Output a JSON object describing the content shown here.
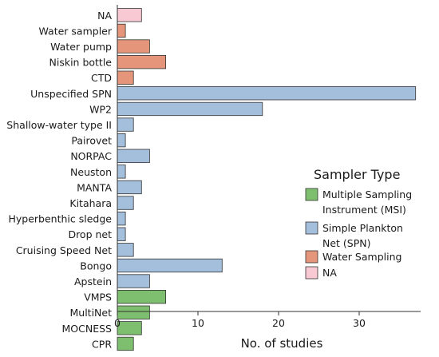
{
  "chart_data": {
    "type": "bar",
    "orientation": "horizontal",
    "xlabel": "No. of studies",
    "ylabel": "",
    "xlim": [
      0,
      38
    ],
    "xticks": [
      0,
      10,
      20,
      30
    ],
    "grid": false,
    "legend_position": "right",
    "legend_title": "Sampler Type",
    "legend": [
      {
        "lines": [
          "Multiple Sampling",
          "Instrument (MSI)"
        ],
        "color": "#7dbf6e"
      },
      {
        "lines": [
          "Simple Plankton",
          "Net (SPN)"
        ],
        "color": "#a3bfdb"
      },
      {
        "lines": [
          "Water Sampling"
        ],
        "color": "#e5967a"
      },
      {
        "lines": [
          "NA"
        ],
        "color": "#f8c8d3"
      }
    ],
    "categories": [
      "NA",
      "Water sampler",
      "Water pump",
      "Niskin bottle",
      "CTD",
      "Unspecified SPN",
      "WP2",
      "Shallow-water type II",
      "Pairovet",
      "NORPAC",
      "Neuston",
      "MANTA",
      "Kitahara",
      "Hyperbenthic sledge",
      "Drop net",
      "Cruising Speed Net",
      "Bongo",
      "Apstein",
      "VMPS",
      "MultiNet",
      "MOCNESS",
      "CPR"
    ],
    "values": [
      3,
      1,
      4,
      6,
      2,
      37,
      18,
      2,
      1,
      4,
      1,
      3,
      2,
      1,
      1,
      2,
      13,
      4,
      6,
      4,
      3,
      2
    ],
    "groups": [
      "NA",
      "Water Sampling",
      "Water Sampling",
      "Water Sampling",
      "Water Sampling",
      "Simple Plankton Net (SPN)",
      "Simple Plankton Net (SPN)",
      "Simple Plankton Net (SPN)",
      "Simple Plankton Net (SPN)",
      "Simple Plankton Net (SPN)",
      "Simple Plankton Net (SPN)",
      "Simple Plankton Net (SPN)",
      "Simple Plankton Net (SPN)",
      "Simple Plankton Net (SPN)",
      "Simple Plankton Net (SPN)",
      "Simple Plankton Net (SPN)",
      "Simple Plankton Net (SPN)",
      "Simple Plankton Net (SPN)",
      "Multiple Sampling Instrument (MSI)",
      "Multiple Sampling Instrument (MSI)",
      "Multiple Sampling Instrument (MSI)",
      "Multiple Sampling Instrument (MSI)"
    ],
    "group_colors": {
      "Multiple Sampling Instrument (MSI)": "#7dbf6e",
      "Simple Plankton Net (SPN)": "#a3bfdb",
      "Water Sampling": "#e5967a",
      "NA": "#f8c8d3"
    }
  }
}
